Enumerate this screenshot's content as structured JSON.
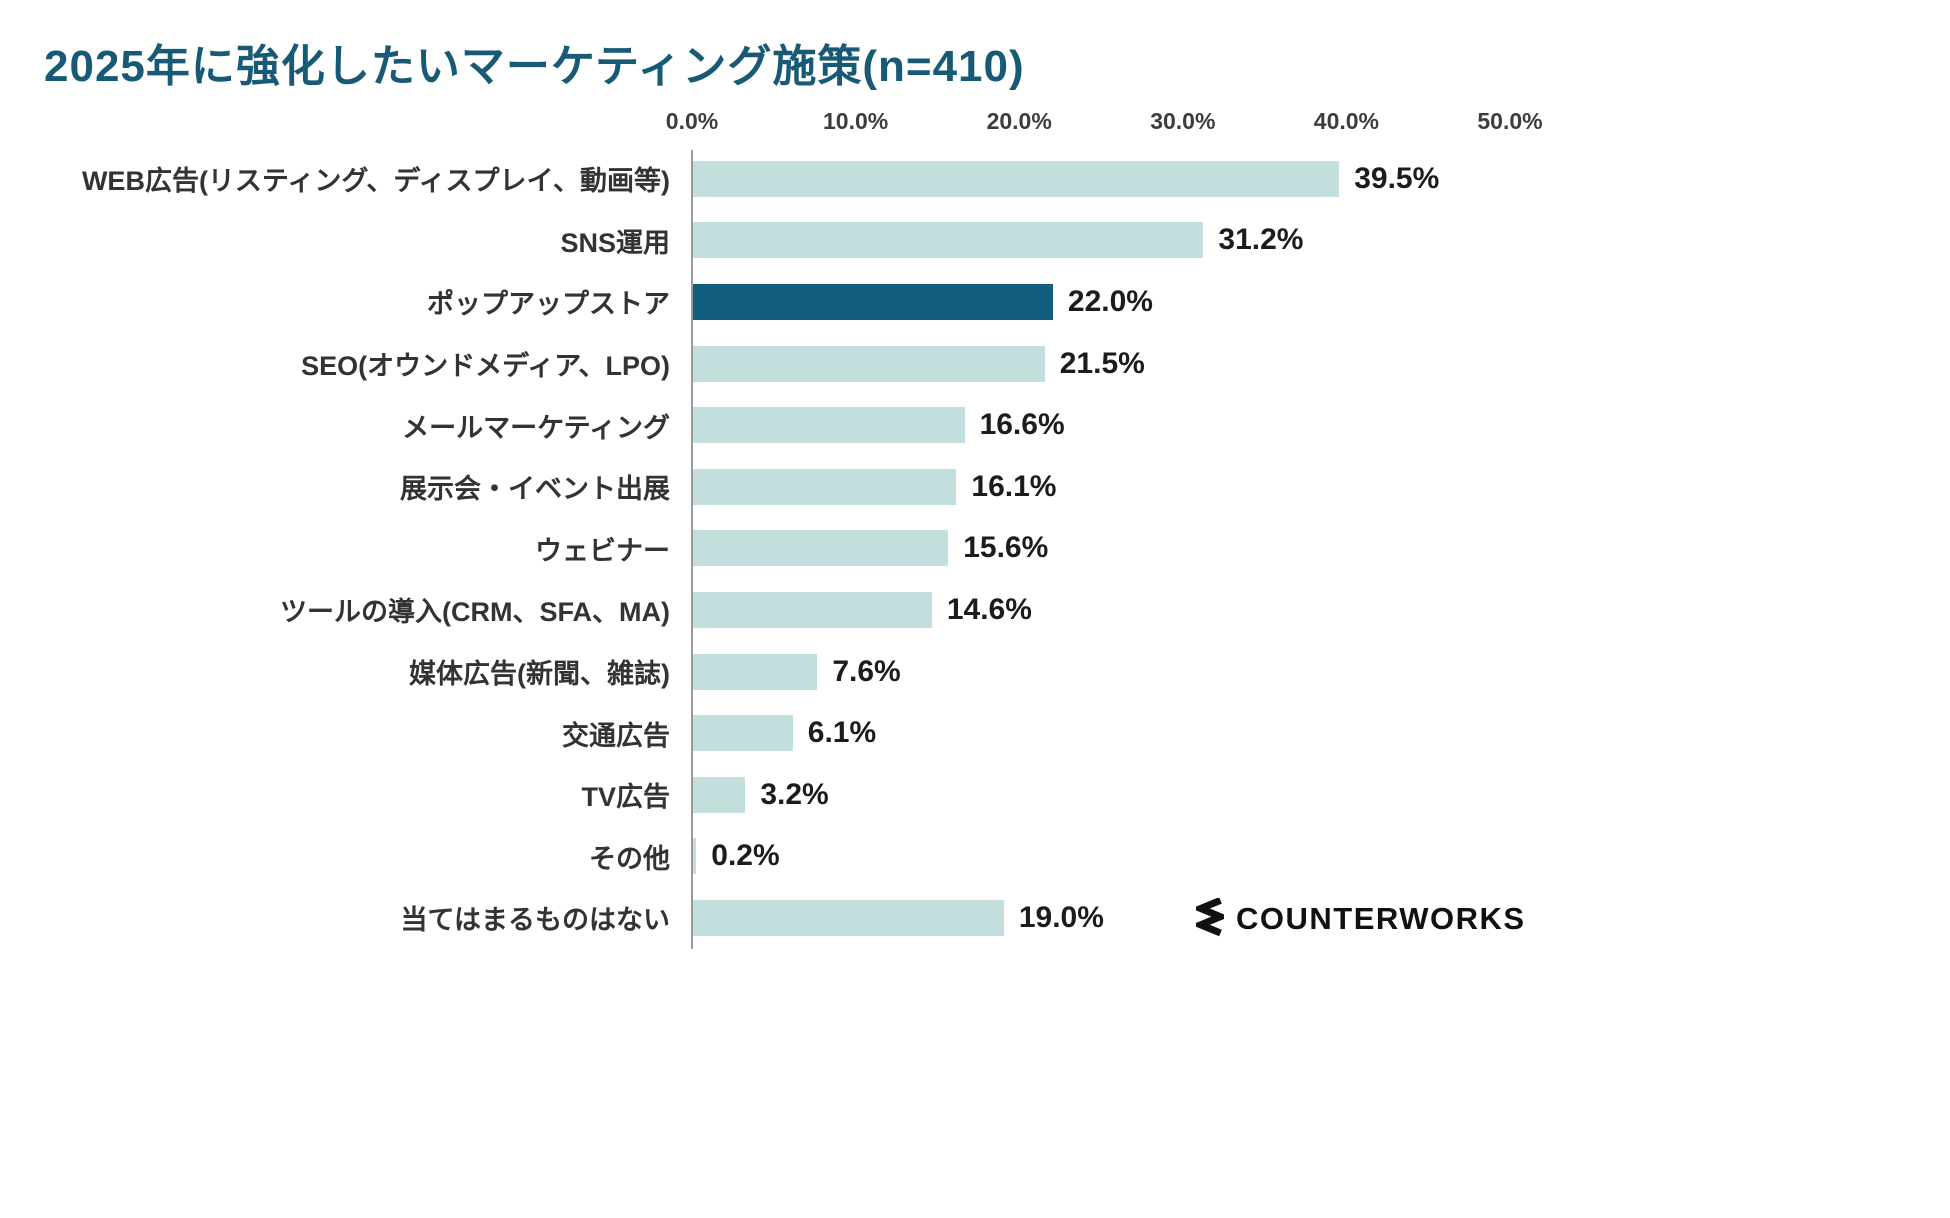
{
  "title": "2025年に強化したいマーケティング施策(n=410)",
  "logo": {
    "text": "COUNTERWORKS",
    "icon": "zigzag-icon"
  },
  "colors": {
    "bar": "#c2dedd",
    "bar_highlight": "#135e7e",
    "title": "#185a75",
    "label": "#333333",
    "value": "#1c1c1c",
    "axis": "#9a9a9a"
  },
  "chart_data": {
    "type": "bar",
    "orientation": "horizontal",
    "title": "2025年に強化したいマーケティング施策(n=410)",
    "xlabel": "",
    "ylabel": "",
    "xlim": [
      0,
      50
    ],
    "x_ticks": [
      "0.0%",
      "10.0%",
      "20.0%",
      "30.0%",
      "40.0%",
      "50.0%"
    ],
    "grid": false,
    "legend": "none",
    "highlight_index": 2,
    "categories": [
      "WEB広告(リスティング、ディスプレイ、動画等)",
      "SNS運用",
      "ポップアップストア",
      "SEO(オウンドメディア、LPO)",
      "メールマーケティング",
      "展示会・イベント出展",
      "ウェビナー",
      "ツールの導入(CRM、SFA、MA)",
      "媒体広告(新聞、雑誌)",
      "交通広告",
      "TV広告",
      "その他",
      "当てはまるものはない"
    ],
    "values": [
      39.5,
      31.2,
      22.0,
      21.5,
      16.6,
      16.1,
      15.6,
      14.6,
      7.6,
      6.1,
      3.2,
      0.2,
      19.0
    ],
    "value_labels": [
      "39.5%",
      "31.2%",
      "22.0%",
      "21.5%",
      "16.6%",
      "16.1%",
      "15.6%",
      "14.6%",
      "7.6%",
      "6.1%",
      "3.2%",
      "0.2%",
      "19.0%"
    ]
  }
}
